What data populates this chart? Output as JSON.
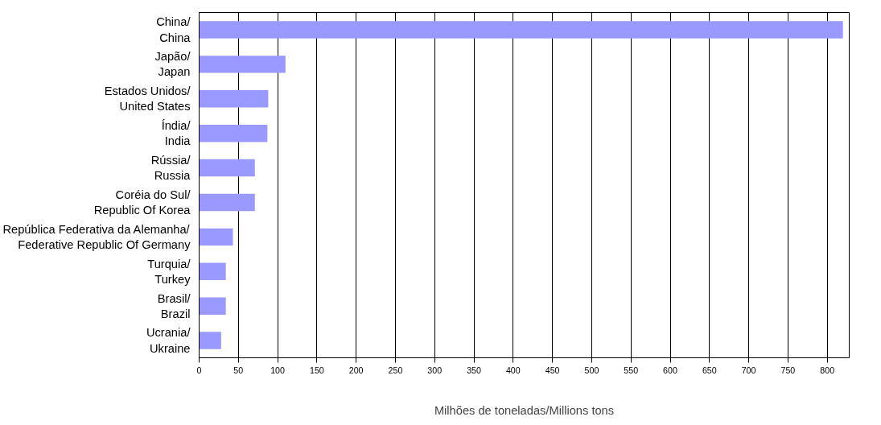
{
  "chart_data": {
    "type": "bar",
    "orientation": "horizontal",
    "categories": [
      "China/\nChina",
      "Japão/\nJapan",
      "Estados Unidos/\nUnited States",
      "Índia/\nIndia",
      "Rússia/\nRussia",
      "Coréia do Sul/\nRepublic Of Korea",
      "República Federativa da Alemanha/\nFederative Republic Of Germany",
      "Turquia/\nTurkey",
      "Brasil/\nBrazil",
      "Ucrania/\nUkraine"
    ],
    "values": [
      820,
      110,
      88,
      87,
      71,
      71,
      43,
      34,
      34,
      28
    ],
    "color": "#9999ff",
    "xlabel": "Milhões de toneladas/Millions tons",
    "xlim": [
      0,
      828
    ],
    "xticks": [
      0,
      50,
      100,
      150,
      200,
      250,
      300,
      350,
      400,
      450,
      500,
      550,
      600,
      650,
      700,
      750,
      800
    ],
    "grid": "x"
  }
}
